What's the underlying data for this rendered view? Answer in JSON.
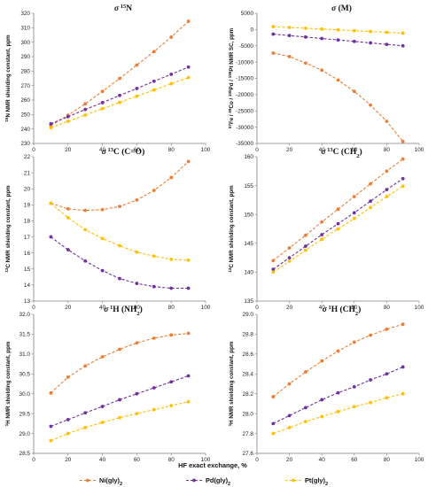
{
  "colors": {
    "ni": "#ED7D31",
    "pd": "#7030A0",
    "pt": "#FFC000"
  },
  "xlabel": "HF exact exchange, %",
  "legend": {
    "placement": "bottom-center",
    "items": [
      {
        "label": "Ni(gly)",
        "sub": "2"
      },
      {
        "label": "Pd(gly)",
        "sub": "2"
      },
      {
        "label": "Pt(gly)",
        "sub": "2"
      }
    ]
  },
  "chart_data": [
    {
      "type": "line",
      "title": {
        "symbol": "σ",
        "sup": "15",
        "main": "N",
        "sub": "",
        "tail": ""
      },
      "ylabel": "15N NMR shielding constant, ppm",
      "ylabel_parts": [
        {
          "t": "15",
          "sup": true
        },
        {
          "t": "N NMR shielding constant, ppm"
        }
      ],
      "xlim": [
        0,
        100
      ],
      "ylim": [
        230,
        320
      ],
      "xticks": [
        0,
        20,
        40,
        60,
        80,
        100
      ],
      "yticks": [
        230,
        240,
        250,
        260,
        270,
        280,
        290,
        300,
        310,
        320
      ],
      "x": [
        10,
        20,
        30,
        40,
        50,
        60,
        70,
        80,
        90
      ],
      "series": [
        {
          "name": "Ni(gly)2",
          "values": [
            242.5,
            249.5,
            257.4,
            266.0,
            274.9,
            284.2,
            293.5,
            303.5,
            314.5
          ]
        },
        {
          "name": "Pd(gly)2",
          "values": [
            243.6,
            248.5,
            253.5,
            258.2,
            263.2,
            268.0,
            273.0,
            277.8,
            282.8
          ]
        },
        {
          "name": "Pt(gly)2",
          "values": [
            240.9,
            245.3,
            249.6,
            254.0,
            258.4,
            262.7,
            267.0,
            271.3,
            275.5
          ]
        }
      ]
    },
    {
      "type": "line",
      "title": {
        "symbol": "σ",
        "sup": "",
        "main": " (M)",
        "sub": "",
        "tail": ""
      },
      "ylabel": "57Fe / 59Co / 105Pd / 195Pt NMR SC, ppm",
      "ylabel_parts": [
        {
          "t": "57",
          "sup": true
        },
        {
          "t": "Fe / "
        },
        {
          "t": "59",
          "sup": true
        },
        {
          "t": "Co / "
        },
        {
          "t": "105",
          "sup": true
        },
        {
          "t": "Pd / "
        },
        {
          "t": "195",
          "sup": true
        },
        {
          "t": "Pt NMR SC, ppm"
        }
      ],
      "xlim": [
        0,
        100
      ],
      "ylim": [
        -35000,
        5000
      ],
      "xticks": [
        0,
        20,
        40,
        60,
        80,
        100
      ],
      "yticks": [
        -35000,
        -30000,
        -25000,
        -20000,
        -15000,
        -10000,
        -5000,
        0,
        5000
      ],
      "x": [
        10,
        20,
        30,
        40,
        50,
        60,
        70,
        80,
        90
      ],
      "series": [
        {
          "name": "Ni(gly)2",
          "values": [
            -7200,
            -8300,
            -10300,
            -12500,
            -15500,
            -19000,
            -23200,
            -28200,
            -34400
          ]
        },
        {
          "name": "Pd(gly)2",
          "values": [
            -1400,
            -1850,
            -2300,
            -2750,
            -3200,
            -3650,
            -4100,
            -4550,
            -5000
          ]
        },
        {
          "name": "Pt(gly)2",
          "values": [
            900,
            650,
            400,
            150,
            -100,
            -350,
            -600,
            -850,
            -1100
          ]
        }
      ]
    },
    {
      "type": "line",
      "title": {
        "symbol": "σ",
        "sup": "13",
        "main": "C (C=O)",
        "sub": "",
        "tail": ""
      },
      "ylabel": "13C NMR shielding constant, ppm",
      "ylabel_parts": [
        {
          "t": "13",
          "sup": true
        },
        {
          "t": "C NMR shielding constant, ppm"
        }
      ],
      "xlim": [
        0,
        100
      ],
      "ylim": [
        13,
        22
      ],
      "xticks": [
        0,
        20,
        40,
        60,
        80,
        100
      ],
      "yticks": [
        13,
        14,
        15,
        16,
        17,
        18,
        19,
        20,
        21,
        22
      ],
      "x": [
        10,
        20,
        30,
        40,
        50,
        60,
        70,
        80,
        90
      ],
      "series": [
        {
          "name": "Ni(gly)2",
          "values": [
            19.1,
            18.75,
            18.65,
            18.7,
            18.9,
            19.3,
            19.9,
            20.7,
            21.7
          ]
        },
        {
          "name": "Pd(gly)2",
          "values": [
            17.0,
            16.2,
            15.5,
            14.9,
            14.4,
            14.1,
            13.9,
            13.8,
            13.8
          ]
        },
        {
          "name": "Pt(gly)2",
          "values": [
            19.1,
            18.2,
            17.45,
            16.9,
            16.45,
            16.05,
            15.8,
            15.6,
            15.55
          ]
        }
      ]
    },
    {
      "type": "line",
      "title": {
        "symbol": "σ",
        "sup": "13",
        "main": "C (CH",
        "sub": "2",
        "tail": ")"
      },
      "ylabel": "13C NMR shielding constant, ppm",
      "ylabel_parts": [
        {
          "t": "13",
          "sup": true
        },
        {
          "t": "C NMR shielding constant, ppm"
        }
      ],
      "xlim": [
        0,
        100
      ],
      "ylim": [
        135,
        160
      ],
      "xticks": [
        0,
        20,
        40,
        60,
        80,
        100
      ],
      "yticks": [
        135,
        140,
        145,
        150,
        155,
        160
      ],
      "x": [
        10,
        20,
        30,
        40,
        50,
        60,
        70,
        80,
        90
      ],
      "series": [
        {
          "name": "Ni(gly)2",
          "values": [
            142.0,
            144.2,
            146.4,
            148.7,
            150.9,
            153.1,
            155.3,
            157.5,
            159.6
          ]
        },
        {
          "name": "Pd(gly)2",
          "values": [
            140.5,
            142.5,
            144.5,
            146.5,
            148.4,
            150.3,
            152.3,
            154.3,
            156.2
          ]
        },
        {
          "name": "Pt(gly)2",
          "values": [
            140.0,
            141.9,
            143.8,
            145.7,
            147.5,
            149.3,
            151.2,
            153.1,
            154.9
          ]
        }
      ]
    },
    {
      "type": "line",
      "title": {
        "symbol": "σ",
        "sup": "1",
        "main": "H (NH",
        "sub": "2",
        "tail": ")"
      },
      "ylabel": "1H NMR shielding constant, ppm",
      "ylabel_parts": [
        {
          "t": "1",
          "sup": true
        },
        {
          "t": "H NMR shielding constant, ppm"
        }
      ],
      "xlim": [
        0,
        100
      ],
      "ylim": [
        28.5,
        32.0
      ],
      "xticks": [
        0,
        20,
        40,
        60,
        80,
        100
      ],
      "yticks": [
        28.5,
        29.0,
        29.5,
        30.0,
        30.5,
        31.0,
        31.5,
        32.0
      ],
      "x": [
        10,
        20,
        30,
        40,
        50,
        60,
        70,
        80,
        90
      ],
      "series": [
        {
          "name": "Ni(gly)2",
          "values": [
            30.02,
            30.42,
            30.7,
            30.93,
            31.12,
            31.28,
            31.4,
            31.48,
            31.52
          ]
        },
        {
          "name": "Pd(gly)2",
          "values": [
            29.18,
            29.35,
            29.52,
            29.68,
            29.85,
            30.0,
            30.15,
            30.3,
            30.45
          ]
        },
        {
          "name": "Pt(gly)2",
          "values": [
            28.82,
            29.0,
            29.15,
            29.28,
            29.4,
            29.5,
            29.6,
            29.7,
            29.8
          ]
        }
      ]
    },
    {
      "type": "line",
      "title": {
        "symbol": "σ",
        "sup": "1",
        "main": "H (CH",
        "sub": "2",
        "tail": ")"
      },
      "ylabel": "1H NMR shielding constant, ppm",
      "ylabel_parts": [
        {
          "t": "1",
          "sup": true
        },
        {
          "t": "H NMR shielding constant, ppm"
        }
      ],
      "xlim": [
        0,
        100
      ],
      "ylim": [
        27.6,
        29.0
      ],
      "xticks": [
        0,
        20,
        40,
        60,
        80,
        100
      ],
      "yticks": [
        27.6,
        27.8,
        28.0,
        28.2,
        28.4,
        28.6,
        28.8,
        29.0
      ],
      "x": [
        10,
        20,
        30,
        40,
        50,
        60,
        70,
        80,
        90
      ],
      "series": [
        {
          "name": "Ni(gly)2",
          "values": [
            28.17,
            28.3,
            28.42,
            28.53,
            28.63,
            28.72,
            28.79,
            28.85,
            28.9
          ]
        },
        {
          "name": "Pd(gly)2",
          "values": [
            27.9,
            27.98,
            28.06,
            28.14,
            28.21,
            28.27,
            28.34,
            28.4,
            28.47
          ]
        },
        {
          "name": "Pt(gly)2",
          "values": [
            27.8,
            27.86,
            27.92,
            27.97,
            28.02,
            28.07,
            28.11,
            28.16,
            28.2
          ]
        }
      ]
    }
  ]
}
